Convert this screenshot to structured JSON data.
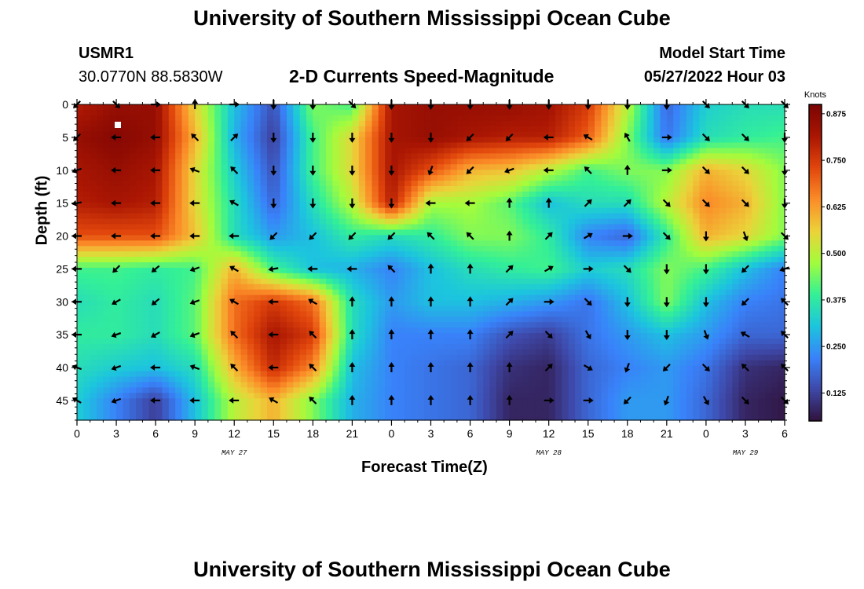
{
  "page": {
    "title_top": "University of Southern Mississippi Ocean Cube",
    "title_bottom": "University of Southern Mississippi Ocean Cube",
    "station_id": "USMR1",
    "coordinates": "30.0770N  88.5830W",
    "model_start_label": "Model Start Time",
    "model_start_value": "05/27/2022 Hour 03"
  },
  "chart_data": {
    "type": "heatmap",
    "title": "2-D Currents Speed-Magnitude",
    "xlabel": "Forecast Time(Z)",
    "ylabel": "Depth (ft)",
    "x_tick_labels": [
      "0",
      "3",
      "6",
      "9",
      "12",
      "15",
      "18",
      "21",
      "0",
      "3",
      "6",
      "9",
      "12",
      "15",
      "18",
      "21",
      "0",
      "3",
      "6"
    ],
    "date_labels": [
      {
        "text": "MAY 27",
        "at_tick": 4
      },
      {
        "text": "MAY 28",
        "at_tick": 12
      },
      {
        "text": "MAY 29",
        "at_tick": 17
      }
    ],
    "y_ticks": [
      0,
      5,
      10,
      15,
      20,
      25,
      30,
      35,
      40,
      45
    ],
    "ylim": [
      0,
      48
    ],
    "colorbar": {
      "title": "Knots",
      "ticks": [
        "0.875",
        "0.750",
        "0.625",
        "0.500",
        "0.375",
        "0.250",
        "0.125"
      ],
      "tick_values": [
        0.875,
        0.75,
        0.625,
        0.5,
        0.375,
        0.25,
        0.125
      ],
      "range": [
        0.05,
        0.9
      ]
    },
    "grid_depths": [
      0,
      5,
      10,
      15,
      20,
      25,
      30,
      35,
      40,
      45
    ],
    "speed_knots": [
      [
        0.8,
        0.85,
        0.85,
        0.55,
        0.3,
        0.15,
        0.45,
        0.4,
        0.82,
        0.85,
        0.85,
        0.85,
        0.83,
        0.75,
        0.5,
        0.18,
        0.32,
        0.35,
        0.35
      ],
      [
        0.85,
        0.88,
        0.85,
        0.6,
        0.28,
        0.12,
        0.4,
        0.55,
        0.82,
        0.85,
        0.82,
        0.8,
        0.8,
        0.7,
        0.45,
        0.2,
        0.35,
        0.38,
        0.4
      ],
      [
        0.82,
        0.85,
        0.82,
        0.55,
        0.32,
        0.15,
        0.4,
        0.55,
        0.82,
        0.72,
        0.6,
        0.58,
        0.5,
        0.4,
        0.45,
        0.45,
        0.6,
        0.55,
        0.45
      ],
      [
        0.8,
        0.82,
        0.8,
        0.55,
        0.35,
        0.18,
        0.35,
        0.5,
        0.8,
        0.48,
        0.48,
        0.42,
        0.3,
        0.35,
        0.35,
        0.5,
        0.65,
        0.6,
        0.45
      ],
      [
        0.72,
        0.72,
        0.72,
        0.58,
        0.35,
        0.25,
        0.3,
        0.38,
        0.35,
        0.38,
        0.45,
        0.45,
        0.38,
        0.22,
        0.18,
        0.38,
        0.6,
        0.55,
        0.45
      ],
      [
        0.4,
        0.4,
        0.38,
        0.4,
        0.6,
        0.4,
        0.3,
        0.28,
        0.22,
        0.3,
        0.35,
        0.38,
        0.4,
        0.32,
        0.35,
        0.45,
        0.4,
        0.3,
        0.22
      ],
      [
        0.35,
        0.38,
        0.35,
        0.42,
        0.68,
        0.75,
        0.68,
        0.35,
        0.25,
        0.3,
        0.3,
        0.28,
        0.25,
        0.2,
        0.3,
        0.45,
        0.3,
        0.22,
        0.2
      ],
      [
        0.38,
        0.38,
        0.35,
        0.42,
        0.68,
        0.82,
        0.75,
        0.35,
        0.22,
        0.22,
        0.22,
        0.15,
        0.12,
        0.2,
        0.25,
        0.3,
        0.25,
        0.18,
        0.18
      ],
      [
        0.35,
        0.32,
        0.3,
        0.35,
        0.6,
        0.78,
        0.65,
        0.3,
        0.22,
        0.2,
        0.18,
        0.1,
        0.08,
        0.18,
        0.22,
        0.25,
        0.2,
        0.1,
        0.08
      ],
      [
        0.32,
        0.22,
        0.12,
        0.3,
        0.5,
        0.6,
        0.45,
        0.28,
        0.22,
        0.2,
        0.18,
        0.08,
        0.08,
        0.18,
        0.25,
        0.25,
        0.18,
        0.08,
        0.06
      ]
    ],
    "direction_deg": [
      [
        225,
        135,
        90,
        0,
        90,
        180,
        180,
        135,
        180,
        180,
        180,
        180,
        180,
        180,
        180,
        180,
        135,
        135,
        135
      ],
      [
        225,
        270,
        270,
        315,
        45,
        180,
        180,
        180,
        180,
        180,
        225,
        225,
        270,
        300,
        330,
        90,
        135,
        135,
        180
      ],
      [
        250,
        270,
        270,
        290,
        315,
        180,
        180,
        180,
        180,
        200,
        225,
        250,
        270,
        315,
        0,
        90,
        135,
        135,
        180
      ],
      [
        260,
        270,
        270,
        270,
        300,
        180,
        180,
        180,
        180,
        270,
        270,
        0,
        0,
        45,
        45,
        135,
        135,
        135,
        180
      ],
      [
        270,
        270,
        270,
        270,
        270,
        225,
        225,
        225,
        225,
        315,
        315,
        0,
        45,
        60,
        90,
        135,
        180,
        160,
        135
      ],
      [
        270,
        225,
        230,
        250,
        300,
        260,
        270,
        270,
        315,
        0,
        0,
        45,
        60,
        90,
        135,
        180,
        180,
        225,
        250
      ],
      [
        270,
        240,
        230,
        250,
        300,
        270,
        300,
        0,
        0,
        0,
        0,
        45,
        90,
        135,
        180,
        180,
        180,
        225,
        315
      ],
      [
        270,
        250,
        240,
        250,
        315,
        270,
        315,
        0,
        0,
        0,
        0,
        45,
        135,
        150,
        180,
        180,
        160,
        300,
        315
      ],
      [
        290,
        250,
        270,
        290,
        315,
        270,
        315,
        0,
        0,
        0,
        0,
        0,
        45,
        120,
        200,
        225,
        135,
        315,
        315
      ],
      [
        300,
        250,
        270,
        270,
        270,
        300,
        315,
        0,
        0,
        0,
        0,
        0,
        90,
        90,
        225,
        200,
        150,
        135,
        135
      ]
    ]
  }
}
